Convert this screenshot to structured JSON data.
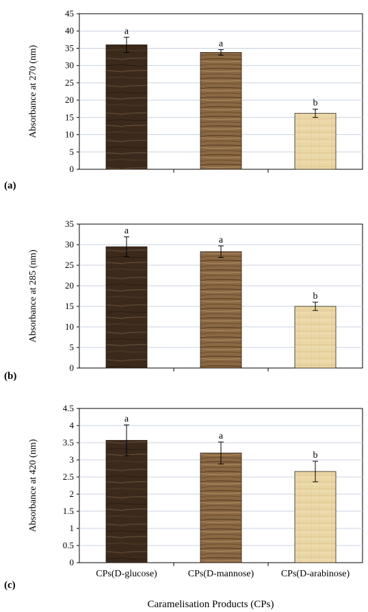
{
  "colors": {
    "glucose_bar": "#3b2a1c",
    "mannose_bar": "#8a6844",
    "arabinose_bar": "#ead7a6",
    "grid": "#c8d2e0",
    "axis": "#000000"
  },
  "x_axis_title": "Caramelisation Products (CPs)",
  "chart_data": [
    {
      "type": "bar",
      "panel": "(a)",
      "ylabel": "Absorbance at 270 (nm)",
      "ylim": [
        0,
        45
      ],
      "yticks": [
        "0",
        "5",
        "10",
        "15",
        "20",
        "25",
        "30",
        "35",
        "40",
        "45"
      ],
      "categories": [
        "CPs(D-glucose)",
        "CPs(D-mannose)",
        "CPs(D-arabinose)"
      ],
      "values": [
        36,
        33.8,
        16.2
      ],
      "errors": [
        2.2,
        0.8,
        1.2
      ],
      "significance": [
        "a",
        "a",
        "b"
      ],
      "grid": true
    },
    {
      "type": "bar",
      "panel": "(b)",
      "ylabel": "Absorbance at 285 (nm)",
      "ylim": [
        0,
        35
      ],
      "yticks": [
        "0",
        "5",
        "10",
        "15",
        "20",
        "25",
        "30",
        "35"
      ],
      "categories": [
        "CPs(D-glucose)",
        "CPs(D-mannose)",
        "CPs(D-arabinose)"
      ],
      "values": [
        29.5,
        28.3,
        15
      ],
      "errors": [
        2.4,
        1.4,
        1.0
      ],
      "significance": [
        "a",
        "a",
        "b"
      ],
      "grid": true
    },
    {
      "type": "bar",
      "panel": "(c)",
      "ylabel": "Absorbance at 420 (nm)",
      "ylim": [
        0,
        4.5
      ],
      "yticks": [
        "0",
        "0.5",
        "1",
        "1.5",
        "2",
        "2.5",
        "3",
        "3.5",
        "4",
        "4.5"
      ],
      "categories": [
        "CPs(D-glucose)",
        "CPs(D-mannose)",
        "CPs(D-arabinose)"
      ],
      "values": [
        3.57,
        3.2,
        2.66
      ],
      "errors": [
        0.45,
        0.32,
        0.3
      ],
      "significance": [
        "a",
        "a",
        "b"
      ],
      "grid": true
    }
  ]
}
